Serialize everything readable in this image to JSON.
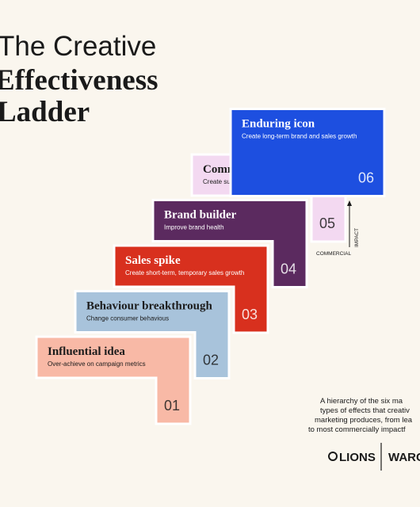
{
  "title": {
    "lines": [
      "The Creative",
      "Effectiveness",
      "Ladder"
    ]
  },
  "steps": [
    {
      "name": "Influential idea",
      "description": "Over-achieve on campaign metrics",
      "number": "01",
      "color": "#f8b9a6",
      "text_color": "#1c1c1c"
    },
    {
      "name": "Behaviour breakthrough",
      "description": "Change consumer behavious",
      "number": "02",
      "color": "#a8c3db",
      "text_color": "#1c1c1c"
    },
    {
      "name": "Sales spike",
      "description": "Create short-term, temporary sales growth",
      "number": "03",
      "color": "#d8301e",
      "text_color": "#ffffff"
    },
    {
      "name": "Brand builder",
      "description": "Improve brand health",
      "number": "04",
      "color": "#5b2a5f",
      "text_color": "#ffffff"
    },
    {
      "name": "Commercial triumph",
      "description": "Create sustained sales success",
      "number": "05",
      "color": "#f3d9f1",
      "text_color": "#1c1c1c"
    },
    {
      "name": "Enduring icon",
      "description": "Create long-term brand and sales growth",
      "number": "06",
      "color": "#1d4fe0",
      "text_color": "#ffffff"
    }
  ],
  "axis": {
    "vertical": "IMPACT",
    "horizontal": "COMMERCIAL"
  },
  "caption": {
    "lines": [
      "A hierarchy of the six ma",
      "types of effects that creativ",
      "marketing produces, from lea",
      "to most commercially impactf"
    ]
  },
  "logos": {
    "left": "LIONS",
    "right": "WARC"
  }
}
